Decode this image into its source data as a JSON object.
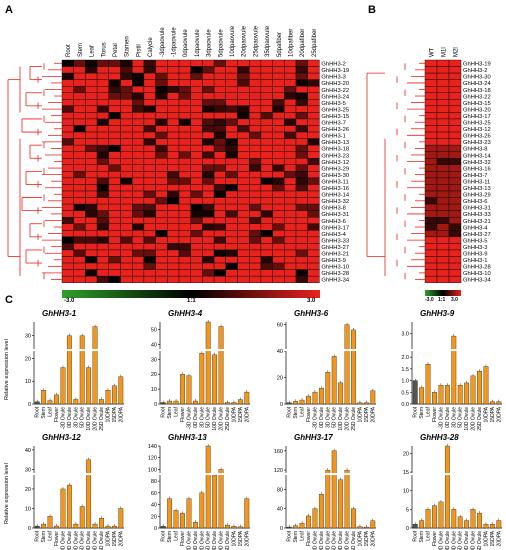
{
  "panels": {
    "a": "A",
    "b": "B",
    "c": "C"
  },
  "colors": {
    "low": "#2ea02a",
    "mid": "#000000",
    "high": "#e8231d",
    "bar": "#f2951c",
    "bar_first": "#555555",
    "dendro": "#e8231d"
  },
  "heatmap_a": {
    "columns": [
      "Root",
      "Stem",
      "Leaf",
      "Torus",
      "Petal",
      "Stamen",
      "Pistil",
      "Calycle",
      "-3dpaovule",
      "-1dpaovule",
      "0dpaovule",
      "1dpaovule",
      "3dpaovule",
      "5dpaovule",
      "10dpaovule",
      "20dpaovule",
      "25dpaovule",
      "35dpaovule",
      "5dpafiber",
      "10dpafiber",
      "20dpafiber",
      "25dpafiber"
    ],
    "rows": [
      "GhHH3-2",
      "GhHH3-19",
      "GhHH3-3",
      "GhHH3-20",
      "GhHH3-22",
      "GhHH3-24",
      "GhHH3-5",
      "GhHH3-25",
      "GhHH3-15",
      "GhHH3-7",
      "GhHH3-26",
      "GhHH3-1",
      "GhHH3-13",
      "GhHH3-18",
      "GhHH3-23",
      "GhHH3-12",
      "GhHH3-29",
      "GhHH3-30",
      "GhHH3-11",
      "GhHH3-16",
      "GhHH3-14",
      "GhHH3-32",
      "GhHH3-8",
      "GhHH3-31",
      "GhHH3-6",
      "GhHH3-17",
      "GhHH3-4",
      "GhHH3-33",
      "GhHH3-27",
      "GhHH3-21",
      "GhHH3-9",
      "GhHH3-10",
      "GhHH3-28",
      "GhHH3-34"
    ],
    "scale": {
      "min": "-3.0",
      "mid": "1:1",
      "max": "3.0"
    }
  },
  "heatmap_b": {
    "columns": [
      "WT",
      "M1l",
      "M2l"
    ],
    "rows": [
      "GhHH3-19",
      "GhHH3-2",
      "GhHH3-30",
      "GhHH3-24",
      "GhHH3-18",
      "GhHH3-22",
      "GhHH3-15",
      "GhHH3-20",
      "GhHH3-17",
      "GhHH3-25",
      "GhHH3-12",
      "GhHH3-26",
      "GhHH3-23",
      "GhHH3-8",
      "GhHH3-14",
      "GhHH3-32",
      "GhHH3-16",
      "GhHH3-7",
      "GhHH3-11",
      "GhHH3-13",
      "GhHH3-29",
      "GhHH3-6",
      "GhHH3-31",
      "GhHH3-33",
      "GhHH3-21",
      "GhHH3-4",
      "GhHH3-27",
      "GhHH3-5",
      "GhHH3-3",
      "GhHH3-9",
      "GhHH3-1",
      "GhHH3-28",
      "GhHH3-10",
      "GhHH3-34"
    ],
    "scale": {
      "min": "-3.0",
      "mid": "1:1",
      "max": "3.0"
    }
  },
  "chart_data": [
    {
      "type": "bar",
      "title": "GhHH3-1",
      "ylabel": "Relative expression level",
      "ylim": [
        0,
        36
      ],
      "yticks": [
        "0",
        "10",
        "20",
        "30"
      ],
      "categories": [
        "Root",
        "Stem",
        "Leaf",
        "Flower",
        "-3D Ovule",
        "0D Ovule",
        "3D Ovule",
        "5D Ovule",
        "10D Ovule",
        "20D Ovule",
        "25D Ovule",
        "10DPA",
        "15DPA",
        "20DPA"
      ],
      "values": [
        1,
        6,
        1.5,
        4,
        16,
        30,
        2,
        30,
        16,
        34,
        2,
        6,
        8,
        12
      ]
    },
    {
      "type": "bar",
      "title": "GhHH3-4",
      "ylabel": "",
      "ylim": [
        0,
        55
      ],
      "yticks": [
        "0",
        "10",
        "20",
        "30",
        "40",
        "50"
      ],
      "categories": [
        "Root",
        "Stem",
        "Leaf",
        "Flower",
        "-3D Ovule",
        "0D Ovule",
        "3D Ovule",
        "5D Ovule",
        "10D Ovule",
        "20D Ovule",
        "25D Ovule",
        "10DPA",
        "15DPA",
        "20DPA"
      ],
      "values": [
        1,
        2,
        2,
        20,
        19,
        2,
        34,
        57,
        33,
        52,
        1,
        1,
        3,
        8
      ]
    },
    {
      "type": "bar",
      "title": "GhHH3-6",
      "ylabel": "",
      "ylim": [
        0,
        62
      ],
      "yticks": [
        "0",
        "20",
        "40",
        "60"
      ],
      "categories": [
        "Root",
        "Stem",
        "Leaf",
        "Flower",
        "-3D Ovule",
        "0D Ovule",
        "3D Ovule",
        "5D Ovule",
        "10D Ovule",
        "20D Ovule",
        "25D Ovule",
        "10DPA",
        "15DPA",
        "20DPA"
      ],
      "values": [
        1,
        2,
        3,
        6,
        9,
        12,
        24,
        36,
        16,
        60,
        56,
        1,
        1,
        10
      ]
    },
    {
      "type": "bar",
      "title": "GhHH3-9",
      "ylabel": "",
      "ylim": [
        0,
        3.5
      ],
      "yticks": [
        "0.0",
        "0.5",
        "1.0",
        "1.5",
        "2.0",
        "3.0"
      ],
      "categories": [
        "Root",
        "Stem",
        "Leaf",
        "Flower",
        "-3D Ovule",
        "0D Ovule",
        "3D Ovule",
        "5D Ovule",
        "10D Ovule",
        "20D Ovule",
        "25D Ovule",
        "10DPA",
        "15DPA",
        "20DPA"
      ],
      "values": [
        1.0,
        0.7,
        1.7,
        0.5,
        0.8,
        0.8,
        2.9,
        0.8,
        0.9,
        1.2,
        1.4,
        1.6,
        0.1,
        0.1
      ]
    },
    {
      "type": "bar",
      "title": "GhHH3-12",
      "ylabel": "Relative expression level",
      "ylim": [
        0,
        42
      ],
      "yticks": [
        "0",
        "10",
        "20",
        "30",
        "40"
      ],
      "categories": [
        "Root",
        "Stem",
        "Leaf",
        "Flower",
        "-3D Ovule",
        "0D Ovule",
        "3D Ovule",
        "5D Ovule",
        "10D Ovule",
        "20D Ovule",
        "25D Ovule",
        "10DPA",
        "15DPA",
        "20DPA"
      ],
      "values": [
        1,
        2,
        6,
        1,
        20,
        22,
        2,
        11,
        35,
        2,
        5,
        1,
        1,
        10
      ]
    },
    {
      "type": "bar",
      "title": "GhHH3-13",
      "ylabel": "",
      "ylim": [
        0,
        140
      ],
      "yticks": [
        "0",
        "20",
        "40",
        "60",
        "80",
        "100",
        "120",
        "140"
      ],
      "categories": [
        "Root",
        "Stem",
        "Leaf",
        "Flower",
        "-3D Ovule",
        "0D Ovule",
        "3D Ovule",
        "5D Ovule",
        "10D Ovule",
        "20D Ovule",
        "25D Ovule",
        "10DPA",
        "15DPA",
        "20DPA"
      ],
      "values": [
        3,
        50,
        30,
        25,
        50,
        10,
        60,
        145,
        90,
        100,
        5,
        3,
        2,
        50
      ]
    },
    {
      "type": "bar",
      "title": "GhHH3-17",
      "ylabel": "",
      "ylim": [
        0,
        170
      ],
      "yticks": [
        "0",
        "40",
        "80",
        "120",
        "160"
      ],
      "categories": [
        "Root",
        "Stem",
        "Leaf",
        "Flower",
        "-3D Ovule",
        "0D Ovule",
        "3D Ovule",
        "5D Ovule",
        "10D Ovule",
        "20D Ovule",
        "25D Ovule",
        "10DPA",
        "15DPA",
        "20DPA"
      ],
      "values": [
        2,
        5,
        10,
        25,
        40,
        70,
        120,
        160,
        100,
        120,
        40,
        3,
        2,
        15
      ]
    },
    {
      "type": "bar",
      "title": "GhHH3-28",
      "ylabel": "",
      "ylim": [
        0,
        22
      ],
      "yticks": [
        "0",
        "5",
        "10",
        "15",
        "20"
      ],
      "categories": [
        "Root",
        "Stem",
        "Leaf",
        "Flower",
        "-3D Ovule",
        "0D Ovule",
        "3D Ovule",
        "5D Ovule",
        "10D Ovule",
        "20D Ovule",
        "25D Ovule",
        "10DPA",
        "15DPA",
        "20DPA"
      ],
      "values": [
        1,
        2,
        5,
        6,
        7,
        22,
        5,
        3,
        2,
        5,
        4,
        1,
        1,
        2
      ]
    }
  ]
}
